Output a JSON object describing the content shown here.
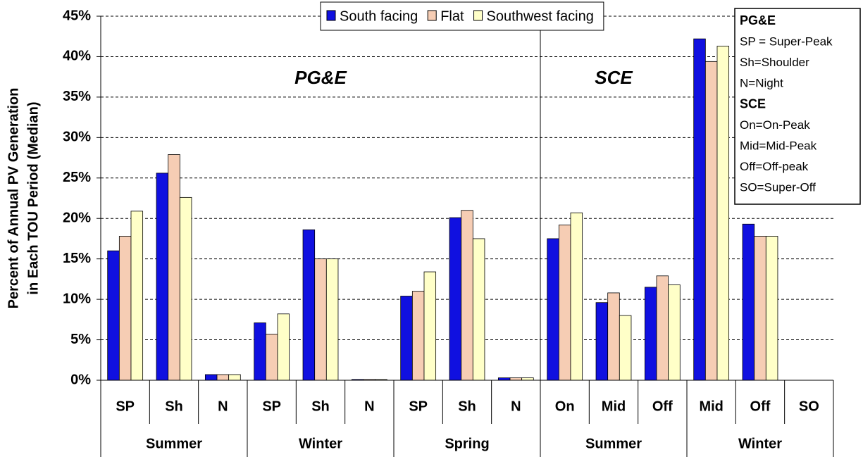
{
  "chart_data": {
    "type": "bar",
    "ylabel": [
      "Percent of Annual PV Generation",
      "in Each TOU Period (Median)"
    ],
    "categories": [
      "SP",
      "Sh",
      "N",
      "SP",
      "Sh",
      "N",
      "SP",
      "Sh",
      "N",
      "On",
      "Mid",
      "Off",
      "Mid",
      "Off",
      "SO"
    ],
    "groups": [
      {
        "name": "Summer",
        "count": 3
      },
      {
        "name": "Winter",
        "count": 3
      },
      {
        "name": "Spring",
        "count": 3
      },
      {
        "name": "Summer",
        "count": 3
      },
      {
        "name": "Winter",
        "count": 3
      }
    ],
    "regions": [
      {
        "name": "PG&E",
        "count": 9
      },
      {
        "name": "SCE",
        "count": 6
      }
    ],
    "series": [
      {
        "name": "South facing",
        "color": "#1010e0",
        "values": [
          16,
          25.6,
          0.7,
          7.1,
          18.6,
          0.1,
          10.4,
          20.1,
          0.3,
          17.5,
          9.6,
          11.5,
          42.2,
          19.3,
          0
        ]
      },
      {
        "name": "Flat",
        "color": "#f6cdb4",
        "values": [
          17.8,
          27.9,
          0.7,
          5.7,
          15,
          0.1,
          11,
          21,
          0.3,
          19.2,
          10.8,
          12.9,
          39.4,
          17.8,
          0
        ]
      },
      {
        "name": "Southwest facing",
        "color": "#ffffc8",
        "values": [
          20.9,
          22.6,
          0.7,
          8.2,
          15,
          0.1,
          13.4,
          17.5,
          0.3,
          20.7,
          8,
          11.8,
          41.3,
          17.8,
          0
        ]
      }
    ],
    "ylim": [
      0,
      45
    ],
    "yticks": [
      {
        "value": 0,
        "label": "0%"
      },
      {
        "value": 5,
        "label": "5%"
      },
      {
        "value": 10,
        "label": "10%"
      },
      {
        "value": 15,
        "label": "15%"
      },
      {
        "value": 20,
        "label": "20%"
      },
      {
        "value": 25,
        "label": "25%"
      },
      {
        "value": 30,
        "label": "30%"
      },
      {
        "value": 35,
        "label": "35%"
      },
      {
        "value": 40,
        "label": "40%"
      },
      {
        "value": 45,
        "label": "45%"
      }
    ],
    "grid": true,
    "notes": [
      {
        "heading": "PG&E",
        "lines": [
          "SP = Super-Peak",
          "Sh=Shoulder",
          "N=Night"
        ]
      },
      {
        "heading": "SCE",
        "lines": [
          "On=On-Peak",
          "Mid=Mid-Peak",
          "Off=Off-peak",
          "SO=Super-Off"
        ]
      }
    ]
  }
}
